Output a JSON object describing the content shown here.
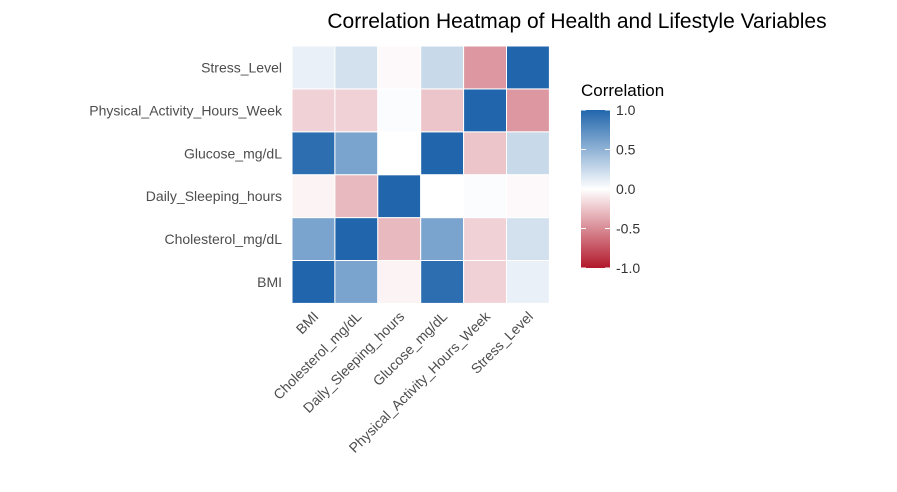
{
  "chart_data": {
    "type": "heatmap",
    "title": "Correlation Heatmap of Health and Lifestyle Variables",
    "x_categories": [
      "BMI",
      "Cholesterol_mg/dL",
      "Daily_Sleeping_hours",
      "Glucose_mg/dL",
      "Physical_Activity_Hours_Week",
      "Stress_Level"
    ],
    "y_categories": [
      "BMI",
      "Cholesterol_mg/dL",
      "Daily_Sleeping_hours",
      "Glucose_mg/dL",
      "Physical_Activity_Hours_Week",
      "Stress_Level"
    ],
    "values": [
      [
        1.0,
        0.6,
        -0.05,
        0.95,
        -0.2,
        0.1
      ],
      [
        0.6,
        1.0,
        -0.3,
        0.6,
        -0.2,
        0.2
      ],
      [
        -0.05,
        -0.3,
        1.0,
        0.0,
        0.02,
        -0.03
      ],
      [
        0.95,
        0.6,
        0.0,
        1.0,
        -0.25,
        0.25
      ],
      [
        -0.2,
        -0.2,
        0.02,
        -0.25,
        1.0,
        -0.45
      ],
      [
        0.1,
        0.2,
        -0.03,
        0.25,
        -0.45,
        1.0
      ]
    ],
    "legend": {
      "title": "Correlation",
      "position": "right",
      "range": [
        -1.0,
        1.0
      ],
      "ticks": [
        1.0,
        0.5,
        0.0,
        -0.5,
        -1.0
      ],
      "tick_labels": [
        "1.0",
        "0.5",
        "0.0",
        "-0.5",
        "-1.0"
      ]
    },
    "colors": {
      "low": "#b2182b",
      "mid": "#ffffff",
      "high": "#2166ac"
    },
    "grid": false
  }
}
